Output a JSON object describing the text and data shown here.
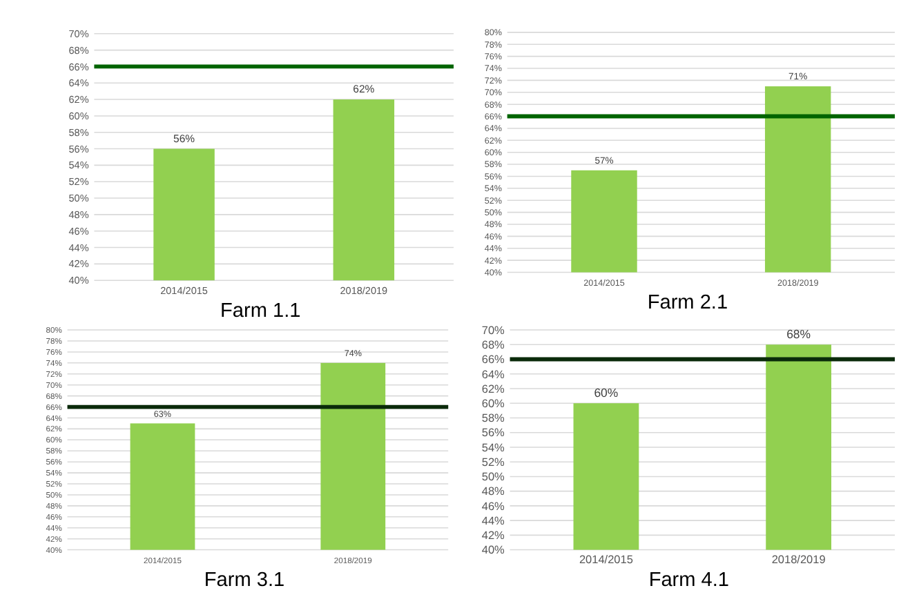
{
  "chart_data": [
    {
      "type": "bar",
      "xlabel": "Farm 1.1",
      "categories": [
        "2014/2015",
        "2018/2019"
      ],
      "values": [
        56,
        62
      ],
      "value_labels": [
        "56%",
        "62%"
      ],
      "color": "#92d050",
      "ylim": [
        40,
        70
      ],
      "yticks": [
        {
          "value": 40,
          "label": "40%"
        },
        {
          "value": 42,
          "label": "42%"
        },
        {
          "value": 44,
          "label": "44%"
        },
        {
          "value": 46,
          "label": "46%"
        },
        {
          "value": 48,
          "label": "48%"
        },
        {
          "value": 50,
          "label": "50%"
        },
        {
          "value": 52,
          "label": "52%"
        },
        {
          "value": 54,
          "label": "54%"
        },
        {
          "value": 56,
          "label": "56%"
        },
        {
          "value": 58,
          "label": "58%"
        },
        {
          "value": 60,
          "label": "60%"
        },
        {
          "value": 62,
          "label": "62%"
        },
        {
          "value": 64,
          "label": "64%"
        },
        {
          "value": 66,
          "label": "66%"
        },
        {
          "value": 68,
          "label": "68%"
        },
        {
          "value": 70,
          "label": "70%"
        }
      ],
      "grid": "y",
      "ref_lines": [
        {
          "axis": "y",
          "value": 66,
          "color": "#006400"
        }
      ]
    },
    {
      "type": "bar",
      "xlabel": "Farm 2.1",
      "categories": [
        "2014/2015",
        "2018/2019"
      ],
      "values": [
        57,
        71
      ],
      "value_labels": [
        "57%",
        "71%"
      ],
      "color": "#92d050",
      "ylim": [
        40,
        80
      ],
      "yticks": [
        {
          "value": 40,
          "label": "40%"
        },
        {
          "value": 42,
          "label": "42%"
        },
        {
          "value": 44,
          "label": "44%"
        },
        {
          "value": 46,
          "label": "46%"
        },
        {
          "value": 48,
          "label": "48%"
        },
        {
          "value": 50,
          "label": "50%"
        },
        {
          "value": 52,
          "label": "52%"
        },
        {
          "value": 54,
          "label": "54%"
        },
        {
          "value": 56,
          "label": "56%"
        },
        {
          "value": 58,
          "label": "58%"
        },
        {
          "value": 60,
          "label": "60%"
        },
        {
          "value": 62,
          "label": "62%"
        },
        {
          "value": 64,
          "label": "64%"
        },
        {
          "value": 66,
          "label": "66%"
        },
        {
          "value": 68,
          "label": "68%"
        },
        {
          "value": 70,
          "label": "70%"
        },
        {
          "value": 72,
          "label": "72%"
        },
        {
          "value": 74,
          "label": "74%"
        },
        {
          "value": 76,
          "label": "76%"
        },
        {
          "value": 78,
          "label": "78%"
        },
        {
          "value": 80,
          "label": "80%"
        }
      ],
      "grid": "y",
      "ref_lines": [
        {
          "axis": "y",
          "value": 66,
          "color": "#006400"
        }
      ]
    },
    {
      "type": "bar",
      "xlabel": "Farm 3.1",
      "categories": [
        "2014/2015",
        "2018/2019"
      ],
      "values": [
        63,
        74
      ],
      "value_labels": [
        "63%",
        "74%"
      ],
      "color": "#92d050",
      "ylim": [
        40,
        80
      ],
      "yticks": [
        {
          "value": 40,
          "label": "40%"
        },
        {
          "value": 42,
          "label": "42%"
        },
        {
          "value": 44,
          "label": "44%"
        },
        {
          "value": 46,
          "label": "46%"
        },
        {
          "value": 48,
          "label": "48%"
        },
        {
          "value": 50,
          "label": "50%"
        },
        {
          "value": 52,
          "label": "52%"
        },
        {
          "value": 54,
          "label": "54%"
        },
        {
          "value": 56,
          "label": "56%"
        },
        {
          "value": 58,
          "label": "58%"
        },
        {
          "value": 60,
          "label": "60%"
        },
        {
          "value": 62,
          "label": "62%"
        },
        {
          "value": 64,
          "label": "64%"
        },
        {
          "value": 66,
          "label": "66%"
        },
        {
          "value": 68,
          "label": "68%"
        },
        {
          "value": 70,
          "label": "70%"
        },
        {
          "value": 72,
          "label": "72%"
        },
        {
          "value": 74,
          "label": "74%"
        },
        {
          "value": 76,
          "label": "76%"
        },
        {
          "value": 78,
          "label": "78%"
        },
        {
          "value": 80,
          "label": "80%"
        }
      ],
      "grid": "y",
      "ref_lines": [
        {
          "axis": "y",
          "value": 66,
          "color": "#0a2a0a"
        }
      ]
    },
    {
      "type": "bar",
      "xlabel": "Farm 4.1",
      "categories": [
        "2014/2015",
        "2018/2019"
      ],
      "values": [
        60,
        68
      ],
      "value_labels": [
        "60%",
        "68%"
      ],
      "color": "#92d050",
      "ylim": [
        40,
        70
      ],
      "yticks": [
        {
          "value": 40,
          "label": "40%"
        },
        {
          "value": 42,
          "label": "42%"
        },
        {
          "value": 44,
          "label": "44%"
        },
        {
          "value": 46,
          "label": "46%"
        },
        {
          "value": 48,
          "label": "48%"
        },
        {
          "value": 50,
          "label": "50%"
        },
        {
          "value": 52,
          "label": "52%"
        },
        {
          "value": 54,
          "label": "54%"
        },
        {
          "value": 56,
          "label": "56%"
        },
        {
          "value": 58,
          "label": "58%"
        },
        {
          "value": 60,
          "label": "60%"
        },
        {
          "value": 62,
          "label": "62%"
        },
        {
          "value": 64,
          "label": "64%"
        },
        {
          "value": 66,
          "label": "66%"
        },
        {
          "value": 68,
          "label": "68%"
        },
        {
          "value": 70,
          "label": "70%"
        }
      ],
      "grid": "y",
      "ref_lines": [
        {
          "axis": "y",
          "value": 66,
          "color": "#0a2a0a"
        }
      ]
    }
  ]
}
